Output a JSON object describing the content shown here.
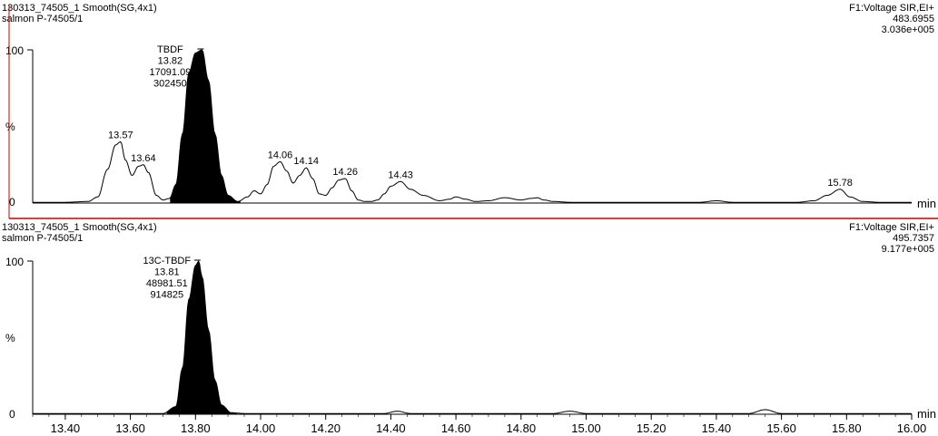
{
  "panels": [
    {
      "header_left": [
        "130313_74505_1 Smooth(SG,4x1)",
        "salmon P-74505/1"
      ],
      "header_right": [
        "F1:Voltage SIR,EI+",
        "483.6955",
        "3.036e+005"
      ],
      "y_ticks": [
        "100",
        "%",
        "0"
      ],
      "x_unit": "min",
      "main_peak": {
        "rt": 13.82,
        "labels": [
          "TBDF",
          "13.82",
          "17091.09",
          "302450"
        ]
      },
      "peak_labels": [
        "13.57",
        "13.64",
        "14.06",
        "14.14",
        "14.26",
        "14.43",
        "15.78"
      ]
    },
    {
      "header_left": [
        "130313_74505_1 Smooth(SG,4x1)",
        "salmon P-74505/1"
      ],
      "header_right": [
        "F1:Voltage SIR,EI+",
        "495.7357",
        "9.177e+005"
      ],
      "y_ticks": [
        "100",
        "%",
        "0"
      ],
      "x_unit": "min",
      "main_peak": {
        "rt": 13.81,
        "labels": [
          "13C-TBDF",
          "13.81",
          "48981.51",
          "914825"
        ]
      },
      "peak_labels": []
    }
  ],
  "x_axis": {
    "ticks": [
      "13.40",
      "13.60",
      "13.80",
      "14.00",
      "14.20",
      "14.40",
      "14.60",
      "14.80",
      "15.00",
      "15.20",
      "15.40",
      "15.60",
      "15.80",
      "16.00"
    ]
  },
  "colors": {
    "separator": "#cc0000",
    "trace": "#000000",
    "fill": "#000000"
  },
  "chart_data": [
    {
      "type": "line",
      "title": "130313_74505_1 Smooth(SG,4x1)",
      "xlabel": "min",
      "ylabel": "%",
      "xlim": [
        13.3,
        16.0
      ],
      "ylim": [
        0,
        100
      ],
      "series": [
        {
          "name": "483.6955",
          "x": [
            13.3,
            13.4,
            13.47,
            13.5,
            13.53,
            13.555,
            13.57,
            13.585,
            13.605,
            13.625,
            13.64,
            13.655,
            13.68,
            13.7,
            13.72,
            13.74,
            13.76,
            13.78,
            13.8,
            13.82,
            13.84,
            13.86,
            13.88,
            13.9,
            13.93,
            13.96,
            13.98,
            14.0,
            14.02,
            14.04,
            14.06,
            14.08,
            14.1,
            14.12,
            14.14,
            14.16,
            14.18,
            14.2,
            14.22,
            14.24,
            14.26,
            14.28,
            14.3,
            14.32,
            14.34,
            14.36,
            14.38,
            14.4,
            14.43,
            14.46,
            14.5,
            14.55,
            14.58,
            14.6,
            14.63,
            14.66,
            14.7,
            14.75,
            14.8,
            14.83,
            14.85,
            14.87,
            14.9,
            14.95,
            15.0,
            15.1,
            15.2,
            15.35,
            15.4,
            15.45,
            15.55,
            15.65,
            15.7,
            15.74,
            15.78,
            15.81,
            15.85,
            15.9,
            16.0
          ],
          "y": [
            0.5,
            0.5,
            1,
            4,
            22,
            38,
            40,
            28,
            18,
            24,
            25,
            20,
            5,
            2,
            3,
            12,
            45,
            85,
            98,
            100,
            80,
            45,
            18,
            5,
            1,
            4,
            8,
            6,
            12,
            24,
            27,
            21,
            13,
            18,
            23,
            16,
            6,
            5,
            10,
            15,
            16,
            8,
            2,
            1,
            1,
            2,
            6,
            11,
            14,
            9,
            5,
            1.5,
            2.5,
            4,
            2.5,
            1,
            1.5,
            3.5,
            2,
            3,
            3.5,
            2,
            1,
            0.5,
            0.5,
            0.5,
            0.5,
            0.5,
            1.5,
            0.5,
            0.5,
            0.5,
            1.5,
            5,
            9,
            4,
            1,
            0.5,
            0.5
          ]
        }
      ],
      "annotations": [
        {
          "x": 13.82,
          "text": [
            "TBDF",
            "13.82",
            "17091.09",
            "302450"
          ]
        },
        {
          "x": 13.57,
          "text": [
            "13.57"
          ]
        },
        {
          "x": 13.64,
          "text": [
            "13.64"
          ]
        },
        {
          "x": 14.06,
          "text": [
            "14.06"
          ]
        },
        {
          "x": 14.14,
          "text": [
            "14.14"
          ]
        },
        {
          "x": 14.26,
          "text": [
            "14.26"
          ]
        },
        {
          "x": 14.43,
          "text": [
            "14.43"
          ]
        },
        {
          "x": 15.78,
          "text": [
            "15.78"
          ]
        }
      ]
    },
    {
      "type": "line",
      "title": "130313_74505_1 Smooth(SG,4x1)",
      "xlabel": "min",
      "ylabel": "%",
      "xlim": [
        13.3,
        16.0
      ],
      "ylim": [
        0,
        100
      ],
      "series": [
        {
          "name": "495.7357",
          "x": [
            13.3,
            13.5,
            13.7,
            13.74,
            13.76,
            13.78,
            13.8,
            13.81,
            13.82,
            13.84,
            13.86,
            13.88,
            13.91,
            13.95,
            14.0,
            14.2,
            14.38,
            14.42,
            14.46,
            14.6,
            14.9,
            14.95,
            15.0,
            15.2,
            15.5,
            15.55,
            15.6,
            15.8,
            16.0
          ],
          "y": [
            0.5,
            0.5,
            0.5,
            5,
            30,
            75,
            97,
            100,
            90,
            55,
            22,
            6,
            1,
            0.5,
            0.5,
            0.5,
            0.5,
            2,
            0.5,
            0.5,
            0.5,
            2,
            0.5,
            0.5,
            0.5,
            3,
            0.5,
            0.5,
            0.5
          ]
        }
      ],
      "annotations": [
        {
          "x": 13.81,
          "text": [
            "13C-TBDF",
            "13.81",
            "48981.51",
            "914825"
          ]
        }
      ]
    }
  ]
}
